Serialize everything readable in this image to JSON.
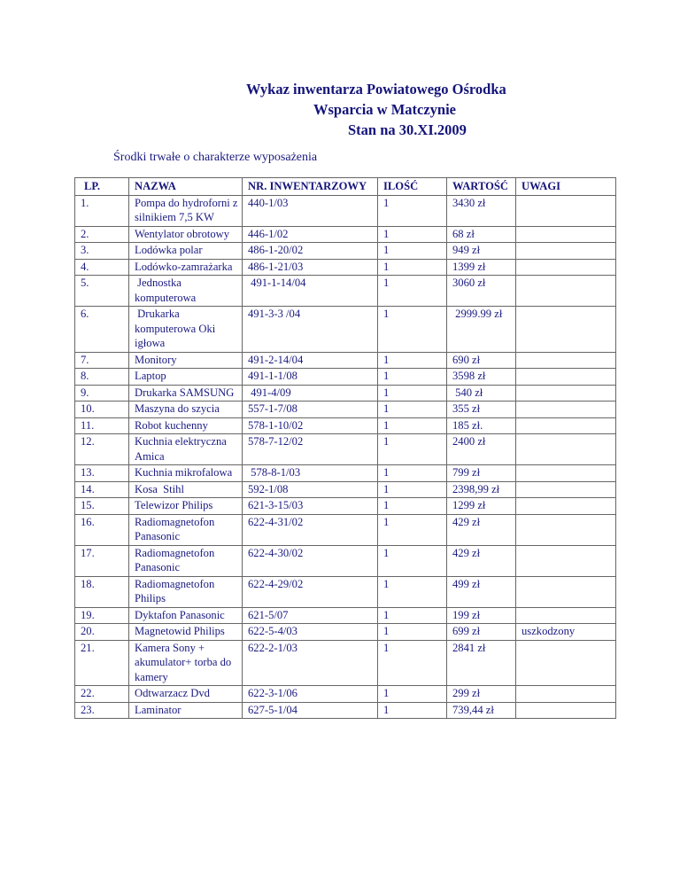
{
  "header": {
    "title_lines": [
      "Wykaz inwentarza Powiatowego Ośrodka",
      "Wsparcia w Matczynie",
      "Stan na 30.XI.2009"
    ],
    "subtitle": "Środki trwałe o charakterze wyposażenia"
  },
  "table": {
    "columns": [
      "LP.",
      "NAZWA",
      "NR. INWENTARZOWY",
      "ILOŚĆ",
      "WARTOŚĆ",
      "UWAGI"
    ],
    "rows": [
      [
        "1.",
        "Pompa do hydroforni z silnikiem 7,5 KW",
        "440-1/03",
        "1",
        "3430 zł",
        ""
      ],
      [
        "2.",
        "Wentylator obrotowy",
        "446-1/02",
        "1",
        "68 zł",
        ""
      ],
      [
        "3.",
        "Lodówka polar",
        "486-1-20/02",
        "1",
        "949 zł",
        ""
      ],
      [
        "4.",
        "Lodówko-zamrażarka",
        "486-1-21/03",
        "1",
        "1399 zł",
        ""
      ],
      [
        "5.",
        " Jednostka komputerowa",
        " 491-1-14/04",
        "1",
        "3060 zł",
        ""
      ],
      [
        "6.",
        " Drukarka komputerowa Oki igłowa",
        "491-3-3 /04",
        "1",
        " 2999.99 zł",
        ""
      ],
      [
        "7.",
        "Monitory",
        "491-2-14/04",
        "1",
        "690 zł",
        ""
      ],
      [
        "8.",
        "Laptop",
        "491-1-1/08",
        "1",
        "3598 zł",
        ""
      ],
      [
        "9.",
        "Drukarka SAMSUNG",
        " 491-4/09",
        "1",
        " 540 zł",
        ""
      ],
      [
        "10.",
        "Maszyna do szycia",
        "557-1-7/08",
        "1",
        "355 zł",
        ""
      ],
      [
        "11.",
        "Robot kuchenny",
        "578-1-10/02",
        "1",
        "185 zł.",
        ""
      ],
      [
        "12.",
        "Kuchnia elektryczna Amica",
        "578-7-12/02",
        "1",
        "2400 zł",
        ""
      ],
      [
        "13.",
        "Kuchnia mikrofalowa",
        " 578-8-1/03",
        "1",
        "799 zł",
        ""
      ],
      [
        "14.",
        "Kosa  Stihl",
        "592-1/08",
        "1",
        "2398,99 zł",
        ""
      ],
      [
        "15.",
        "Telewizor Philips",
        "621-3-15/03",
        "1",
        "1299 zł",
        ""
      ],
      [
        "16.",
        "Radiomagnetofon Panasonic",
        "622-4-31/02",
        "1",
        "429 zł",
        ""
      ],
      [
        "17.",
        "Radiomagnetofon Panasonic",
        "622-4-30/02",
        "1",
        "429 zł",
        ""
      ],
      [
        "18.",
        "Radiomagnetofon Philips",
        "622-4-29/02",
        "1",
        "499 zł",
        ""
      ],
      [
        "19.",
        "Dyktafon Panasonic",
        "621-5/07",
        "1",
        "199 zł",
        ""
      ],
      [
        "20.",
        "Magnetowid Philips",
        "622-5-4/03",
        "1",
        "699 zł",
        "uszkodzony"
      ],
      [
        "21.",
        "Kamera Sony + akumulator+ torba do kamery",
        "622-2-1/03",
        "1",
        "2841 zł",
        ""
      ],
      [
        "22.",
        "Odtwarzacz Dvd",
        "622-3-1/06",
        "1",
        "299 zł",
        ""
      ],
      [
        "23.",
        "Laminator",
        "627-5-1/04",
        "1",
        "739,44 zł",
        ""
      ]
    ]
  }
}
